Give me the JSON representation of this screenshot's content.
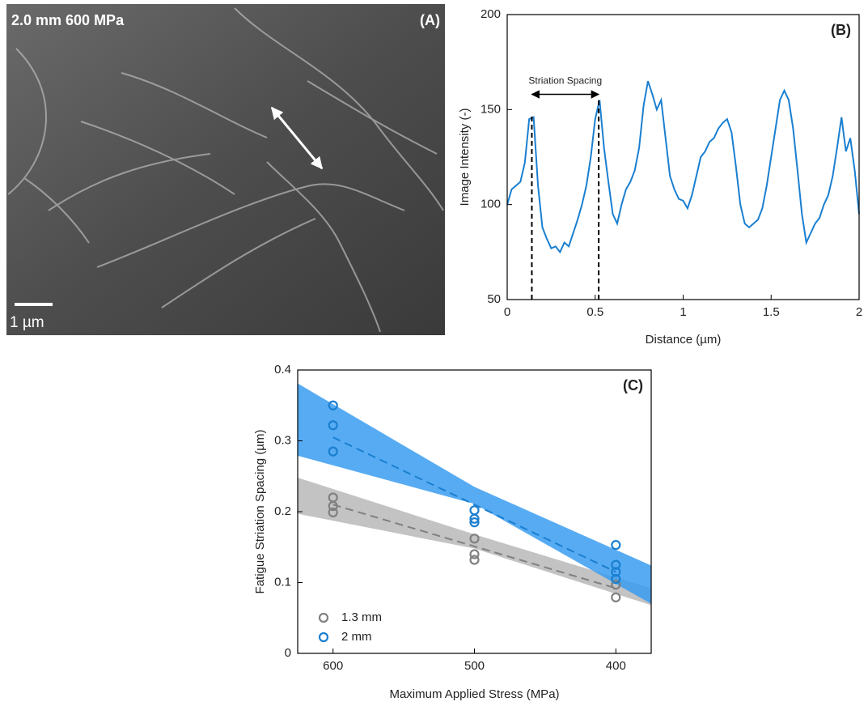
{
  "image_panel": {
    "caption": "2.0 mm 600 MPa",
    "panel_label": "(A)",
    "scale_bar": "1 µm"
  },
  "chart_data": [
    {
      "type": "line",
      "panel_label": "(B)",
      "x_label": "Distance (µm)",
      "y_label": "Image Intensity (-)",
      "color": "#1a7fd0",
      "x": [
        0,
        0.025,
        0.05,
        0.075,
        0.1,
        0.125,
        0.15,
        0.175,
        0.2,
        0.225,
        0.25,
        0.275,
        0.3,
        0.325,
        0.35,
        0.375,
        0.4,
        0.425,
        0.45,
        0.475,
        0.5,
        0.525,
        0.55,
        0.575,
        0.6,
        0.625,
        0.65,
        0.675,
        0.7,
        0.725,
        0.75,
        0.775,
        0.8,
        0.825,
        0.85,
        0.875,
        0.9,
        0.925,
        0.95,
        0.975,
        1,
        1.025,
        1.05,
        1.075,
        1.1,
        1.125,
        1.15,
        1.175,
        1.2,
        1.225,
        1.25,
        1.275,
        1.3,
        1.325,
        1.35,
        1.375,
        1.4,
        1.425,
        1.45,
        1.475,
        1.5,
        1.525,
        1.55,
        1.575,
        1.6,
        1.625,
        1.65,
        1.675,
        1.7,
        1.725,
        1.75,
        1.775,
        1.8,
        1.825,
        1.85,
        1.875,
        1.9,
        1.925,
        1.95,
        1.975,
        2
      ],
      "values": [
        100,
        108,
        110,
        112,
        122,
        145,
        146,
        110,
        88,
        82,
        77,
        78,
        75,
        80,
        78,
        85,
        92,
        100,
        110,
        125,
        145,
        155,
        130,
        112,
        95,
        90,
        100,
        108,
        112,
        118,
        130,
        152,
        165,
        158,
        150,
        155,
        135,
        115,
        108,
        103,
        102,
        98,
        105,
        115,
        125,
        128,
        133,
        135,
        140,
        143,
        145,
        138,
        120,
        100,
        90,
        88,
        90,
        92,
        98,
        110,
        125,
        140,
        155,
        160,
        155,
        140,
        118,
        95,
        80,
        85,
        90,
        93,
        100,
        105,
        115,
        130,
        146,
        128,
        135,
        118,
        95
      ],
      "annotation": {
        "text": "Striation Spacing",
        "x": [
          0.14,
          0.52
        ],
        "y": [
          148,
          156
        ],
        "arrow_y": 158
      },
      "xlim": [
        0,
        2
      ],
      "ylim": [
        50,
        200
      ],
      "xticks": [
        0,
        0.5,
        1,
        1.5,
        2
      ],
      "yticks": [
        50,
        100,
        150,
        200
      ]
    },
    {
      "type": "scatter",
      "panel_label": "(C)",
      "x_label": "Maximum Applied Stress (MPa)",
      "y_label": "Fatigue Striation Spacing (µm)",
      "series": [
        {
          "name": "1.3 mm",
          "color": "#808080",
          "x": [
            600,
            600,
            600,
            500,
            500,
            500,
            400,
            400
          ],
          "values": [
            0.22,
            0.208,
            0.199,
            0.162,
            0.14,
            0.132,
            0.097,
            0.079
          ],
          "fit": {
            "x": [
              600,
              400
            ],
            "y": [
              0.21,
              0.092
            ]
          },
          "band": {
            "color": "#b8b8b8",
            "x": [
              625,
              500,
              375
            ],
            "upper": [
              0.248,
              0.168,
              0.092
            ],
            "lower": [
              0.197,
              0.148,
              0.068
            ]
          }
        },
        {
          "name": "2 mm",
          "color": "#1a7fd0",
          "x": [
            600,
            600,
            600,
            500,
            500,
            500,
            400,
            400,
            400,
            400
          ],
          "values": [
            0.35,
            0.322,
            0.285,
            0.202,
            0.19,
            0.185,
            0.153,
            0.125,
            0.115,
            0.105
          ],
          "fit": {
            "x": [
              600,
              400
            ],
            "y": [
              0.305,
              0.115
            ]
          },
          "band": {
            "color": "#3a9cf0",
            "x": [
              625,
              500,
              375
            ],
            "upper": [
              0.381,
              0.235,
              0.124
            ],
            "lower": [
              0.279,
              0.211,
              0.07
            ]
          }
        }
      ],
      "legend": "lower left",
      "xlim": [
        625,
        375
      ],
      "ylim": [
        0,
        0.4
      ],
      "xticks": [
        600,
        500,
        400
      ],
      "yticks": [
        0,
        0.1,
        0.2,
        0.3,
        0.4
      ]
    }
  ]
}
